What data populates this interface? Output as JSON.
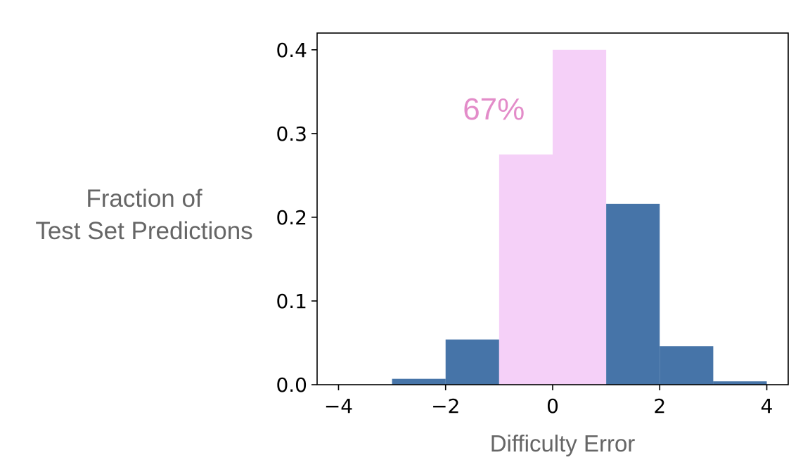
{
  "chart_data": {
    "type": "bar",
    "title": "",
    "ylabel_lines": [
      "Fraction of",
      "Test Set Predictions"
    ],
    "xlabel": "Difficulty Error",
    "xlim": [
      -4.4,
      4.4
    ],
    "ylim": [
      0,
      0.42
    ],
    "xticks": [
      -4,
      -2,
      0,
      2,
      4
    ],
    "xtick_labels": [
      "−4",
      "−2",
      "0",
      "2",
      "4"
    ],
    "yticks": [
      0.0,
      0.1,
      0.2,
      0.3,
      0.4
    ],
    "ytick_labels": [
      "0.0",
      "0.1",
      "0.2",
      "0.3",
      "0.4"
    ],
    "grid": false,
    "bin_edges": [
      -4,
      -3,
      -2,
      -1,
      0,
      1,
      2,
      3,
      4
    ],
    "values": [
      0.0,
      0.007,
      0.054,
      0.275,
      0.4,
      0.216,
      0.046,
      0.004
    ],
    "highlight_range": [
      -1,
      1
    ],
    "annotation": {
      "text": "67%",
      "x": -1.1,
      "y": 0.32,
      "color": "#e38cc9"
    },
    "colors": {
      "bar": "#4674a8",
      "highlight": "#f5d0f8",
      "annotation": "#e38cc9"
    }
  }
}
